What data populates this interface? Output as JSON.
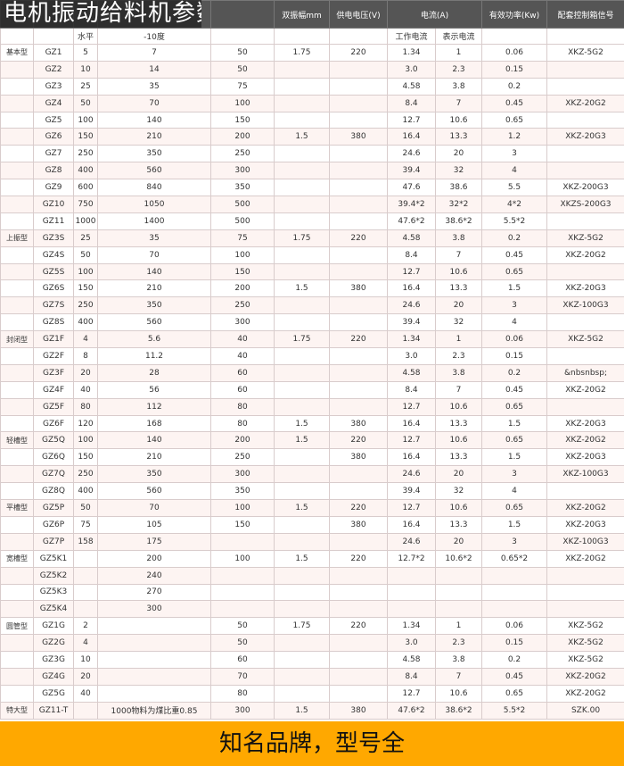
{
  "title": "电机振动给料机参数",
  "header": {
    "amplitude": "双振幅mm",
    "voltage": "供电电压(V)",
    "current": "电流(A)",
    "power": "有效功率(Kw)",
    "control_box": "配套控制箱信号",
    "horizontal": "水平",
    "minus10": "-10度",
    "work_current": "工作电流",
    "indicate_current": "表示电流"
  },
  "rows": [
    [
      "基本型",
      "GZ1",
      "5",
      "7",
      "50",
      "1.75",
      "220",
      "1.34",
      "1",
      "0.06",
      "XKZ-5G2"
    ],
    [
      "",
      "GZ2",
      "10",
      "14",
      "50",
      "",
      "",
      "3.0",
      "2.3",
      "0.15",
      ""
    ],
    [
      "",
      "GZ3",
      "25",
      "35",
      "75",
      "",
      "",
      "4.58",
      "3.8",
      "0.2",
      ""
    ],
    [
      "",
      "GZ4",
      "50",
      "70",
      "100",
      "",
      "",
      "8.4",
      "7",
      "0.45",
      "XKZ-20G2"
    ],
    [
      "",
      "GZ5",
      "100",
      "140",
      "150",
      "",
      "",
      "12.7",
      "10.6",
      "0.65",
      ""
    ],
    [
      "",
      "GZ6",
      "150",
      "210",
      "200",
      "1.5",
      "380",
      "16.4",
      "13.3",
      "1.2",
      "XKZ-20G3"
    ],
    [
      "",
      "GZ7",
      "250",
      "350",
      "250",
      "",
      "",
      "24.6",
      "20",
      "3",
      ""
    ],
    [
      "",
      "GZ8",
      "400",
      "560",
      "300",
      "",
      "",
      "39.4",
      "32",
      "4",
      ""
    ],
    [
      "",
      "GZ9",
      "600",
      "840",
      "350",
      "",
      "",
      "47.6",
      "38.6",
      "5.5",
      "XKZ-200G3"
    ],
    [
      "",
      "GZ10",
      "750",
      "1050",
      "500",
      "",
      "",
      "39.4*2",
      "32*2",
      "4*2",
      "XKZS-200G3"
    ],
    [
      "",
      "GZ11",
      "1000",
      "1400",
      "500",
      "",
      "",
      "47.6*2",
      "38.6*2",
      "5.5*2",
      ""
    ],
    [
      "上振型",
      "GZ3S",
      "25",
      "35",
      "75",
      "1.75",
      "220",
      "4.58",
      "3.8",
      "0.2",
      "XKZ-5G2"
    ],
    [
      "",
      "GZ4S",
      "50",
      "70",
      "100",
      "",
      "",
      "8.4",
      "7",
      "0.45",
      "XKZ-20G2"
    ],
    [
      "",
      "GZ5S",
      "100",
      "140",
      "150",
      "",
      "",
      "12.7",
      "10.6",
      "0.65",
      ""
    ],
    [
      "",
      "GZ6S",
      "150",
      "210",
      "200",
      "1.5",
      "380",
      "16.4",
      "13.3",
      "1.5",
      "XKZ-20G3"
    ],
    [
      "",
      "GZ7S",
      "250",
      "350",
      "250",
      "",
      "",
      "24.6",
      "20",
      "3",
      "XKZ-100G3"
    ],
    [
      "",
      "GZ8S",
      "400",
      "560",
      "300",
      "",
      "",
      "39.4",
      "32",
      "4",
      ""
    ],
    [
      "封闭型",
      "GZ1F",
      "4",
      "5.6",
      "40",
      "1.75",
      "220",
      "1.34",
      "1",
      "0.06",
      "XKZ-5G2"
    ],
    [
      "",
      "GZ2F",
      "8",
      "11.2",
      "40",
      "",
      "",
      "3.0",
      "2.3",
      "0.15",
      ""
    ],
    [
      "",
      "GZ3F",
      "20",
      "28",
      "60",
      "",
      "",
      "4.58",
      "3.8",
      "0.2",
      "&nbsnbsp;"
    ],
    [
      "",
      "GZ4F",
      "40",
      "56",
      "60",
      "",
      "",
      "8.4",
      "7",
      "0.45",
      "XKZ-20G2"
    ],
    [
      "",
      "GZ5F",
      "80",
      "112",
      "80",
      "",
      "",
      "12.7",
      "10.6",
      "0.65",
      ""
    ],
    [
      "",
      "GZ6F",
      "120",
      "168",
      "80",
      "1.5",
      "380",
      "16.4",
      "13.3",
      "1.5",
      "XKZ-20G3"
    ],
    [
      "轻槽型",
      "GZ5Q",
      "100",
      "140",
      "200",
      "1.5",
      "220",
      "12.7",
      "10.6",
      "0.65",
      "XKZ-20G2"
    ],
    [
      "",
      "GZ6Q",
      "150",
      "210",
      "250",
      "",
      "380",
      "16.4",
      "13.3",
      "1.5",
      "XKZ-20G3"
    ],
    [
      "",
      "GZ7Q",
      "250",
      "350",
      "300",
      "",
      "",
      "24.6",
      "20",
      "3",
      "XKZ-100G3"
    ],
    [
      "",
      "GZ8Q",
      "400",
      "560",
      "350",
      "",
      "",
      "39.4",
      "32",
      "4",
      ""
    ],
    [
      "平槽型",
      "GZ5P",
      "50",
      "70",
      "100",
      "1.5",
      "220",
      "12.7",
      "10.6",
      "0.65",
      "XKZ-20G2"
    ],
    [
      "",
      "GZ6P",
      "75",
      "105",
      "150",
      "",
      "380",
      "16.4",
      "13.3",
      "1.5",
      "XKZ-20G3"
    ],
    [
      "",
      "GZ7P",
      "158",
      "175",
      "",
      "",
      "",
      "24.6",
      "20",
      "3",
      "XKZ-100G3"
    ],
    [
      "宽槽型",
      "GZ5K1",
      "",
      "200",
      "100",
      "1.5",
      "220",
      "12.7*2",
      "10.6*2",
      "0.65*2",
      "XKZ-20G2"
    ],
    [
      "",
      "GZ5K2",
      "",
      "240",
      "",
      "",
      "",
      "",
      "",
      "",
      ""
    ],
    [
      "",
      "GZ5K3",
      "",
      "270",
      "",
      "",
      "",
      "",
      "",
      "",
      ""
    ],
    [
      "",
      "GZ5K4",
      "",
      "300",
      "",
      "",
      "",
      "",
      "",
      "",
      ""
    ],
    [
      "圆管型",
      "GZ1G",
      "2",
      "",
      "50",
      "1.75",
      "220",
      "1.34",
      "1",
      "0.06",
      "XKZ-5G2"
    ],
    [
      "",
      "GZ2G",
      "4",
      "",
      "50",
      "",
      "",
      "3.0",
      "2.3",
      "0.15",
      "XKZ-5G2"
    ],
    [
      "",
      "GZ3G",
      "10",
      "",
      "60",
      "",
      "",
      "4.58",
      "3.8",
      "0.2",
      "XKZ-5G2"
    ],
    [
      "",
      "GZ4G",
      "20",
      "",
      "70",
      "",
      "",
      "8.4",
      "7",
      "0.45",
      "XKZ-20G2"
    ],
    [
      "",
      "GZ5G",
      "40",
      "",
      "80",
      "",
      "",
      "12.7",
      "10.6",
      "0.65",
      "XKZ-20G2"
    ],
    [
      "特大型",
      "GZ11-T",
      "",
      "1000物料为煤比重0.85",
      "300",
      "1.5",
      "380",
      "47.6*2",
      "38.6*2",
      "5.5*2",
      "SZK.00"
    ]
  ],
  "banner": "知名品牌，型号全",
  "colors": {
    "banner": "#ffa800",
    "header": "#555555",
    "row_alt": "#fdf4f2"
  }
}
